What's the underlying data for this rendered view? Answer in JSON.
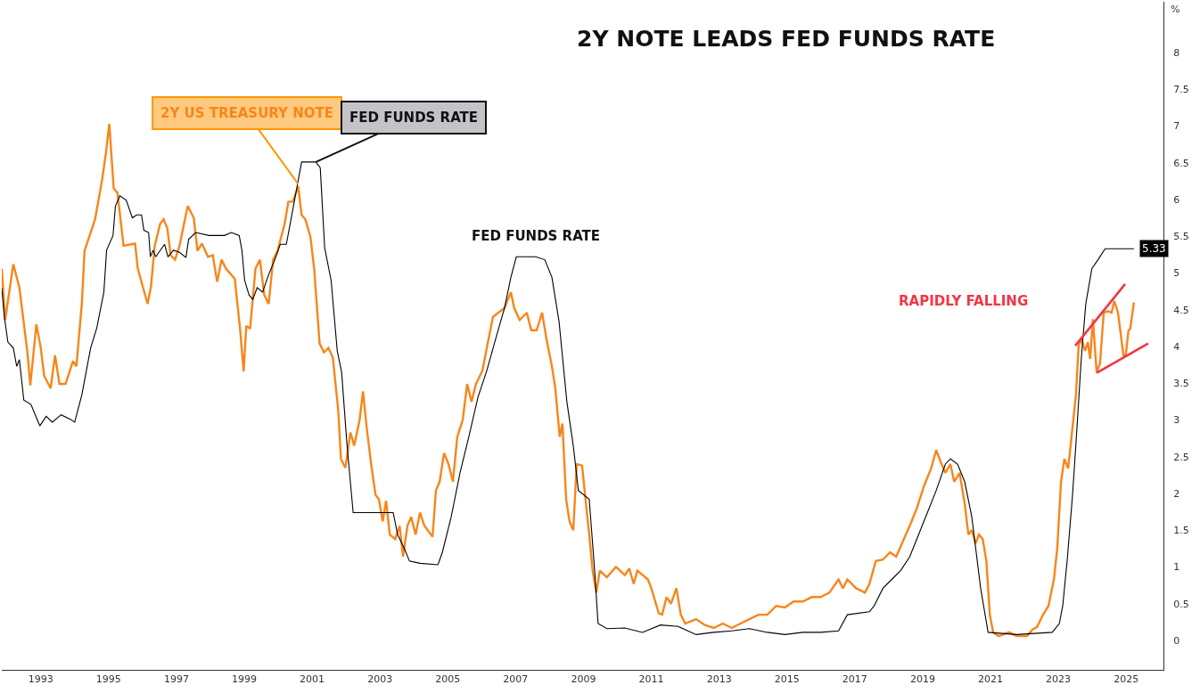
{
  "chart_data": {
    "type": "line",
    "title": "2Y NOTE LEADS FED FUNDS RATE",
    "ylabel": "%",
    "xlim": [
      1991.85,
      2026.1
    ],
    "xticks": [
      1993,
      1995,
      1997,
      1999,
      2001,
      2003,
      2005,
      2007,
      2009,
      2011,
      2013,
      2015,
      2017,
      2019,
      2021,
      2023,
      2025
    ],
    "ylim": [
      -0.4,
      8.69
    ],
    "yticks": [
      0,
      0.5,
      1,
      1.5,
      2,
      2.5,
      3,
      3.5,
      4,
      4.5,
      5,
      5.5,
      6,
      6.5,
      7,
      7.5,
      8
    ],
    "grid": false,
    "line_style": "solid",
    "annotations": [
      {
        "text": "2Y US TREASURY NOTE",
        "x": 2000.59,
        "y": 6.21
      },
      {
        "text": "FED FUNDS RATE",
        "x": 2001.11,
        "y": 6.51
      },
      "FED FUNDS RATE",
      "RAPIDLY FALLING"
    ],
    "series": [
      {
        "color": "#f7861b",
        "x": [
          1991.85,
          1991.95,
          1992.19,
          1992.37,
          1992.61,
          1992.69,
          1992.87,
          1993.0,
          1993.1,
          1993.29,
          1993.42,
          1993.55,
          1993.73,
          1993.95,
          1994.05,
          1994.21,
          1994.29,
          1994.6,
          1994.81,
          1994.92,
          1995.02,
          1995.15,
          1995.26,
          1995.44,
          1995.78,
          1995.86,
          1996.04,
          1996.15,
          1996.25,
          1996.36,
          1996.52,
          1996.62,
          1996.73,
          1996.83,
          1996.96,
          1997.09,
          1997.33,
          1997.51,
          1997.62,
          1997.75,
          1997.93,
          1998.07,
          1998.2,
          1998.33,
          1998.46,
          1998.72,
          1998.88,
          1998.98,
          1999.06,
          1999.17,
          1999.33,
          1999.46,
          1999.59,
          1999.72,
          1999.85,
          1999.98,
          2000.19,
          2000.3,
          2000.43,
          2000.59,
          2000.69,
          2000.8,
          2000.95,
          2001.06,
          2001.22,
          2001.35,
          2001.48,
          2001.61,
          2001.77,
          2001.85,
          2001.98,
          2002.13,
          2002.24,
          2002.4,
          2002.5,
          2002.61,
          2002.74,
          2002.87,
          2002.97,
          2003.08,
          2003.18,
          2003.29,
          2003.45,
          2003.58,
          2003.68,
          2003.81,
          2003.92,
          2004.05,
          2004.18,
          2004.31,
          2004.55,
          2004.65,
          2004.76,
          2004.89,
          2005.02,
          2005.15,
          2005.28,
          2005.44,
          2005.57,
          2005.7,
          2005.83,
          2006.02,
          2006.15,
          2006.33,
          2006.49,
          2006.67,
          2006.86,
          2006.96,
          2007.12,
          2007.33,
          2007.46,
          2007.62,
          2007.78,
          2007.91,
          2008.07,
          2008.17,
          2008.3,
          2008.38,
          2008.49,
          2008.59,
          2008.7,
          2008.8,
          2008.96,
          2009.06,
          2009.17,
          2009.27,
          2009.38,
          2009.48,
          2009.69,
          2009.96,
          2010.22,
          2010.35,
          2010.48,
          2010.59,
          2010.9,
          2011.0,
          2011.22,
          2011.32,
          2011.45,
          2011.58,
          2011.74,
          2011.87,
          2012.0,
          2012.32,
          2012.58,
          2012.84,
          2013.11,
          2013.37,
          2013.63,
          2013.89,
          2014.16,
          2014.42,
          2014.68,
          2014.94,
          2015.2,
          2015.47,
          2015.73,
          2015.99,
          2016.25,
          2016.52,
          2016.65,
          2016.78,
          2017.04,
          2017.3,
          2017.43,
          2017.62,
          2017.83,
          2018.04,
          2018.22,
          2018.41,
          2018.62,
          2018.83,
          2019.04,
          2019.25,
          2019.4,
          2019.56,
          2019.67,
          2019.82,
          2019.93,
          2020.09,
          2020.24,
          2020.35,
          2020.45,
          2020.56,
          2020.66,
          2020.77,
          2020.88,
          2020.98,
          2021.08,
          2021.24,
          2021.55,
          2021.77,
          2022.08,
          2022.24,
          2022.37,
          2022.55,
          2022.71,
          2022.87,
          2022.97,
          2023.08,
          2023.18,
          2023.29,
          2023.39,
          2023.52,
          2023.6,
          2023.68,
          2023.79,
          2023.87,
          2023.94,
          2024.02,
          2024.13,
          2024.23,
          2024.34,
          2024.47,
          2024.57,
          2024.65,
          2024.76,
          2024.92,
          2024.99,
          2025.07,
          2025.12,
          2025.23
        ],
        "values": [
          5.06,
          4.36,
          5.12,
          4.8,
          3.9,
          3.47,
          4.3,
          3.98,
          3.6,
          3.43,
          3.88,
          3.49,
          3.49,
          3.8,
          3.73,
          4.58,
          5.3,
          5.73,
          6.27,
          6.63,
          7.03,
          6.15,
          6.09,
          5.37,
          5.4,
          5.06,
          4.76,
          4.58,
          4.82,
          5.37,
          5.67,
          5.73,
          5.61,
          5.24,
          5.18,
          5.37,
          5.91,
          5.75,
          5.3,
          5.4,
          5.22,
          5.24,
          4.88,
          5.18,
          5.06,
          4.92,
          4.22,
          3.66,
          4.28,
          4.24,
          5.06,
          5.18,
          4.7,
          4.58,
          5.18,
          5.3,
          5.67,
          5.97,
          5.97,
          6.18,
          5.79,
          5.73,
          5.49,
          5.06,
          4.04,
          3.92,
          3.98,
          3.85,
          3.13,
          2.47,
          2.35,
          2.83,
          2.65,
          3.0,
          3.39,
          2.89,
          2.4,
          1.98,
          1.92,
          1.62,
          1.9,
          1.44,
          1.38,
          1.56,
          1.14,
          1.56,
          1.68,
          1.44,
          1.74,
          1.56,
          1.41,
          2.04,
          2.16,
          2.55,
          2.4,
          2.16,
          2.77,
          3.0,
          3.49,
          3.25,
          3.49,
          3.67,
          3.98,
          4.4,
          4.46,
          4.52,
          4.74,
          4.52,
          4.36,
          4.46,
          4.22,
          4.22,
          4.46,
          4.1,
          3.73,
          3.43,
          2.77,
          2.95,
          1.92,
          1.62,
          1.5,
          2.4,
          2.38,
          1.92,
          1.44,
          0.95,
          0.65,
          0.95,
          0.86,
          1.0,
          0.89,
          0.98,
          0.77,
          0.95,
          0.83,
          0.71,
          0.37,
          0.35,
          0.59,
          0.5,
          0.71,
          0.35,
          0.23,
          0.29,
          0.21,
          0.17,
          0.23,
          0.17,
          0.23,
          0.29,
          0.35,
          0.35,
          0.47,
          0.45,
          0.53,
          0.53,
          0.59,
          0.59,
          0.65,
          0.83,
          0.71,
          0.83,
          0.71,
          0.65,
          0.77,
          1.08,
          1.1,
          1.2,
          1.14,
          1.34,
          1.56,
          1.8,
          2.1,
          2.34,
          2.59,
          2.4,
          2.28,
          2.4,
          2.16,
          2.28,
          1.86,
          1.44,
          1.5,
          1.32,
          1.44,
          1.38,
          1.08,
          0.35,
          0.11,
          0.06,
          0.11,
          0.06,
          0.06,
          0.15,
          0.18,
          0.35,
          0.47,
          0.83,
          1.26,
          2.16,
          2.47,
          2.34,
          2.77,
          3.34,
          4.01,
          4.1,
          3.94,
          4.06,
          3.83,
          4.37,
          3.65,
          3.77,
          4.46,
          4.48,
          4.46,
          4.62,
          4.46,
          3.88,
          3.89,
          4.22,
          4.24,
          4.6
        ]
      },
      {
        "color": "#000000",
        "x": [
          1991.85,
          1991.92,
          1992.03,
          1992.19,
          1992.29,
          1992.37,
          1992.5,
          1992.71,
          1992.97,
          1993.16,
          1993.34,
          1993.6,
          1993.87,
          1994.0,
          1994.21,
          1994.47,
          1994.65,
          1994.86,
          1994.94,
          1995.13,
          1995.2,
          1995.33,
          1995.52,
          1995.7,
          1995.83,
          1995.97,
          1996.04,
          1996.18,
          1996.23,
          1996.31,
          1996.39,
          1996.65,
          1996.75,
          1996.91,
          1997.09,
          1997.28,
          1997.36,
          1997.57,
          1997.96,
          1998.41,
          1998.62,
          1998.85,
          1998.93,
          1999.01,
          1999.14,
          1999.25,
          1999.38,
          1999.54,
          1999.72,
          1999.9,
          2000.06,
          2000.24,
          2000.45,
          2000.69,
          2001.11,
          2001.24,
          2001.37,
          2001.56,
          2001.74,
          2001.87,
          2002.03,
          2002.21,
          2002.87,
          2003.39,
          2003.52,
          2003.71,
          2003.87,
          2004.18,
          2004.71,
          2004.84,
          2005.1,
          2005.36,
          2005.62,
          2005.89,
          2006.15,
          2006.41,
          2006.67,
          2006.86,
          2007.02,
          2007.59,
          2007.86,
          2008.07,
          2008.28,
          2008.51,
          2008.7,
          2008.85,
          2009.17,
          2009.33,
          2009.43,
          2009.69,
          2010.22,
          2010.74,
          2011.27,
          2011.79,
          2012.32,
          2012.84,
          2013.37,
          2013.89,
          2014.42,
          2014.94,
          2015.47,
          2015.99,
          2016.52,
          2016.78,
          2017.43,
          2017.57,
          2017.83,
          2018.09,
          2018.35,
          2018.62,
          2018.88,
          2019.14,
          2019.4,
          2019.67,
          2019.82,
          2020.03,
          2020.24,
          2020.45,
          2020.71,
          2020.93,
          2021.77,
          2022.82,
          2023.03,
          2023.13,
          2023.26,
          2023.42,
          2023.55,
          2023.68,
          2023.81,
          2023.99,
          2024.17,
          2024.38,
          2025.23
        ],
        "values": [
          4.8,
          4.42,
          4.06,
          3.98,
          3.73,
          3.82,
          3.27,
          3.21,
          2.92,
          3.05,
          2.97,
          3.07,
          3.01,
          2.97,
          3.34,
          3.98,
          4.25,
          4.74,
          5.31,
          5.51,
          5.91,
          6.05,
          5.99,
          5.75,
          5.79,
          5.79,
          5.58,
          5.55,
          5.22,
          5.31,
          5.22,
          5.39,
          5.22,
          5.31,
          5.28,
          5.21,
          5.46,
          5.55,
          5.51,
          5.51,
          5.55,
          5.51,
          5.31,
          4.9,
          4.7,
          4.64,
          4.8,
          4.74,
          4.98,
          5.18,
          5.39,
          5.39,
          5.91,
          6.51,
          6.51,
          6.43,
          5.34,
          4.9,
          3.94,
          3.65,
          2.65,
          1.74,
          1.74,
          1.74,
          1.44,
          1.26,
          1.08,
          1.05,
          1.03,
          1.2,
          1.68,
          2.28,
          2.77,
          3.31,
          3.67,
          4.1,
          4.52,
          4.94,
          5.22,
          5.22,
          5.18,
          4.94,
          4.34,
          3.25,
          2.65,
          2.04,
          1.92,
          0.95,
          0.23,
          0.16,
          0.17,
          0.11,
          0.21,
          0.19,
          0.08,
          0.11,
          0.13,
          0.16,
          0.11,
          0.08,
          0.11,
          0.11,
          0.13,
          0.35,
          0.39,
          0.47,
          0.71,
          0.83,
          0.95,
          1.14,
          1.44,
          1.74,
          2.04,
          2.4,
          2.47,
          2.4,
          2.16,
          1.68,
          0.71,
          0.11,
          0.08,
          0.11,
          0.23,
          0.47,
          1.08,
          1.98,
          2.89,
          3.85,
          4.58,
          5.06,
          5.18,
          5.33,
          5.33
        ],
        "value_labels": [
          null,
          null,
          null,
          null,
          null,
          null,
          null,
          null,
          null,
          null,
          null,
          null,
          null,
          null,
          null,
          null,
          null,
          null,
          null,
          null,
          null,
          null,
          null,
          null,
          null,
          null,
          null,
          null,
          null,
          null,
          null,
          null,
          null,
          null,
          null,
          null,
          null,
          null,
          null,
          null,
          null,
          null,
          null,
          null,
          null,
          null,
          null,
          null,
          null,
          null,
          null,
          null,
          null,
          null,
          null,
          null,
          null,
          null,
          null,
          null,
          null,
          null,
          null,
          null,
          null,
          null,
          null,
          null,
          null,
          null,
          null,
          null,
          null,
          null,
          null,
          null,
          null,
          null,
          null,
          null,
          null,
          null,
          null,
          null,
          null,
          null,
          null,
          null,
          null,
          null,
          null,
          null,
          null,
          null,
          null,
          null,
          null,
          null,
          null,
          null,
          null,
          null,
          null,
          null,
          null,
          null,
          null,
          null,
          null,
          null,
          null,
          null,
          null,
          null,
          null,
          null,
          null,
          null,
          null,
          null,
          null,
          null,
          null,
          null,
          null,
          null,
          null,
          null,
          null,
          null,
          null,
          null,
          "5.33"
        ]
      },
      {
        "color": "#f23645",
        "x": [
          2023.5,
          2024.97
        ],
        "values": [
          4.01,
          4.85
        ]
      },
      {
        "color": "#f23645",
        "x": [
          2024.13,
          2025.65
        ],
        "values": [
          3.64,
          4.04
        ]
      }
    ]
  }
}
